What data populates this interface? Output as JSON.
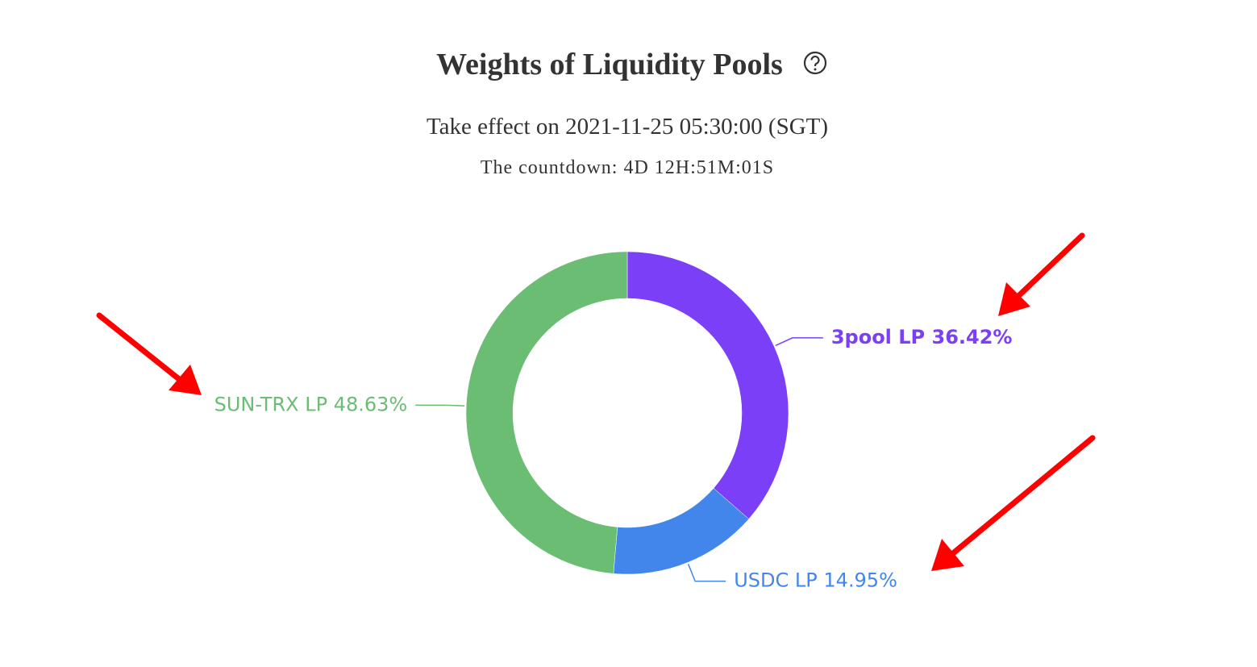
{
  "chart_data": {
    "type": "pie",
    "title": "Weights of Liquidity Pools",
    "subtitle": "Take effect on 2021-11-25 05:30:00 (SGT)",
    "countdown": "The countdown: 4D 12H:51M:01S",
    "categories": [
      "3pool LP",
      "USDC LP",
      "SUN-TRX LP"
    ],
    "values": [
      36.42,
      14.95,
      48.63
    ],
    "value_labels": [
      "36.42%",
      "14.95%",
      "48.63%"
    ],
    "colors": [
      "#7b3ff7",
      "#4286ec",
      "#6abd72"
    ]
  }
}
